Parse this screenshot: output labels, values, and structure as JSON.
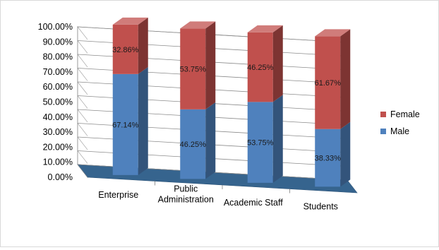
{
  "chart_data": {
    "type": "bar",
    "stacked": true,
    "percent": true,
    "three_d": true,
    "title": "",
    "xlabel": "",
    "ylabel": "",
    "ylim": [
      0,
      100
    ],
    "ytick_step": 10,
    "ytick_format": "0.00%",
    "grid": true,
    "legend": "right",
    "categories": [
      "Enterprise",
      "Public Administration",
      "Academic Staff",
      "Students"
    ],
    "category_labels": [
      [
        "Enterprise"
      ],
      [
        "Public",
        "Administration"
      ],
      [
        "Academic Staff"
      ],
      [
        "Students"
      ]
    ],
    "series": [
      {
        "name": "Male",
        "values": [
          67.14,
          46.25,
          53.75,
          38.33
        ],
        "labels": [
          "67.14%",
          "46.25%",
          "53.75%",
          "38.33%"
        ],
        "color": "#4f81bd"
      },
      {
        "name": "Female",
        "values": [
          32.86,
          53.75,
          46.25,
          61.67
        ],
        "labels": [
          "32.86%",
          "53.75%",
          "46.25%",
          "61.67%"
        ],
        "color": "#c0504d"
      }
    ],
    "legend_order": [
      "Female",
      "Male"
    ]
  }
}
